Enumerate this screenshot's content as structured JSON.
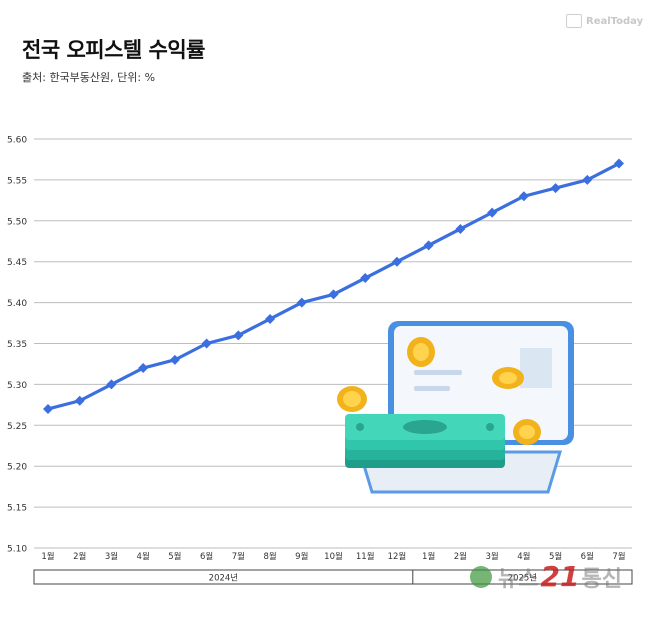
{
  "header": {
    "title": "전국 오피스텔 수익률",
    "subtitle": "출처: 한국부동산원, 단위: %",
    "brand": "RealToday"
  },
  "watermark": {
    "text": "뉴스",
    "number": "21",
    "suffix": "통신"
  },
  "chart_data": {
    "type": "line",
    "title": "전국 오피스텔 수익률",
    "categories": [
      "1월",
      "2월",
      "3월",
      "4월",
      "5월",
      "6월",
      "7월",
      "8월",
      "9월",
      "10월",
      "11월",
      "12월",
      "1월",
      "2월",
      "3월",
      "4월",
      "5월",
      "6월",
      "7월"
    ],
    "year_groups": [
      {
        "label": "2024년",
        "start": 0,
        "end": 11
      },
      {
        "label": "2025년",
        "start": 12,
        "end": 18
      }
    ],
    "series": [
      {
        "values": [
          5.27,
          5.28,
          5.3,
          5.32,
          5.33,
          5.35,
          5.36,
          5.38,
          5.4,
          5.41,
          5.43,
          5.45,
          5.47,
          5.49,
          5.51,
          5.53,
          5.54,
          5.55,
          5.57
        ],
        "color": "#3b6fe0"
      }
    ],
    "ylim": [
      5.1,
      5.6
    ],
    "yticks": [
      "5.10",
      "5.15",
      "5.20",
      "5.25",
      "5.30",
      "5.35",
      "5.40",
      "5.45",
      "5.50",
      "5.55",
      "5.60"
    ],
    "grid": true
  }
}
